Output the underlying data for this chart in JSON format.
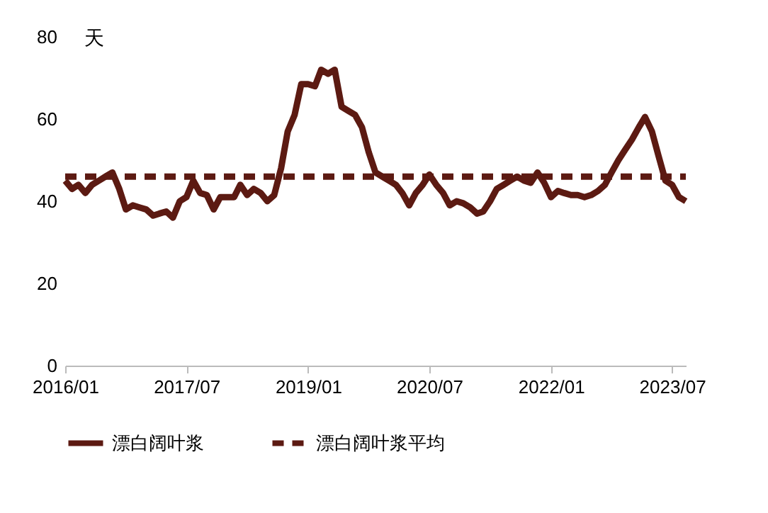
{
  "chart_data": {
    "type": "line",
    "ylabel": "天",
    "x": [
      "2016-01",
      "2016-02",
      "2016-03",
      "2016-04",
      "2016-05",
      "2016-06",
      "2016-07",
      "2016-08",
      "2016-09",
      "2016-10",
      "2016-11",
      "2016-12",
      "2017-01",
      "2017-02",
      "2017-03",
      "2017-04",
      "2017-05",
      "2017-06",
      "2017-07",
      "2017-08",
      "2017-09",
      "2017-10",
      "2017-11",
      "2017-12",
      "2018-01",
      "2018-02",
      "2018-03",
      "2018-04",
      "2018-05",
      "2018-06",
      "2018-07",
      "2018-08",
      "2018-09",
      "2018-10",
      "2018-11",
      "2018-12",
      "2019-01",
      "2019-02",
      "2019-03",
      "2019-04",
      "2019-05",
      "2019-06",
      "2019-07",
      "2019-08",
      "2019-09",
      "2019-10",
      "2019-11",
      "2019-12",
      "2020-01",
      "2020-02",
      "2020-03",
      "2020-04",
      "2020-05",
      "2020-06",
      "2020-07",
      "2020-08",
      "2020-09",
      "2020-10",
      "2020-11",
      "2020-12",
      "2021-01",
      "2021-02",
      "2021-03",
      "2021-04",
      "2021-05",
      "2021-06",
      "2021-07",
      "2021-08",
      "2021-09",
      "2021-10",
      "2021-11",
      "2021-12",
      "2022-01",
      "2022-02",
      "2022-03",
      "2022-04",
      "2022-05",
      "2022-06",
      "2022-07",
      "2022-08",
      "2022-09",
      "2022-10",
      "2022-11",
      "2022-12",
      "2023-01",
      "2023-02",
      "2023-03",
      "2023-04",
      "2023-05",
      "2023-06",
      "2023-07",
      "2023-08",
      "2023-09"
    ],
    "series": [
      {
        "name": "漂白阔叶浆",
        "color": "#5c1a12",
        "line_style": "solid",
        "values": [
          45,
          43,
          44,
          42,
          44,
          45,
          46,
          47,
          43,
          38,
          39,
          38.5,
          38,
          36.5,
          37,
          37.5,
          36,
          40,
          41,
          45,
          42,
          41.5,
          38,
          41,
          41,
          41,
          44,
          41.5,
          43,
          42,
          40,
          41.5,
          48,
          57,
          61,
          68.5,
          68.5,
          68,
          72,
          71,
          72,
          63,
          62,
          61,
          58,
          52,
          47,
          46,
          45,
          44,
          42,
          39,
          42,
          44,
          46.5,
          44,
          42,
          39,
          40,
          39.5,
          38.5,
          37,
          37.5,
          40,
          43,
          44,
          45,
          46,
          45,
          44.5,
          47,
          44.5,
          41,
          42.5,
          42,
          41.5,
          41.5,
          41,
          41.5,
          42.5,
          44,
          47,
          50,
          52.5,
          55,
          58,
          60.5,
          57,
          51,
          45,
          44,
          41,
          40
        ]
      },
      {
        "name": "漂白阔叶浆平均",
        "color": "#5c1a12",
        "line_style": "dashed",
        "x": [
          "2016-01",
          "2023-09"
        ],
        "values": [
          46,
          46
        ]
      }
    ],
    "xlim": [
      "2016-01",
      "2023-09"
    ],
    "xticks": [
      {
        "value": "2016-01",
        "label": "2016/01"
      },
      {
        "value": "2017-07",
        "label": "2017/07"
      },
      {
        "value": "2019-01",
        "label": "2019/01"
      },
      {
        "value": "2020-07",
        "label": "2020/07"
      },
      {
        "value": "2022-01",
        "label": "2022/01"
      },
      {
        "value": "2023-07",
        "label": "2023/07"
      }
    ],
    "ylim": [
      0,
      80
    ],
    "yticks": [
      0,
      20,
      40,
      60,
      80
    ],
    "grid": false,
    "legend": "bottom",
    "marker": "none"
  }
}
